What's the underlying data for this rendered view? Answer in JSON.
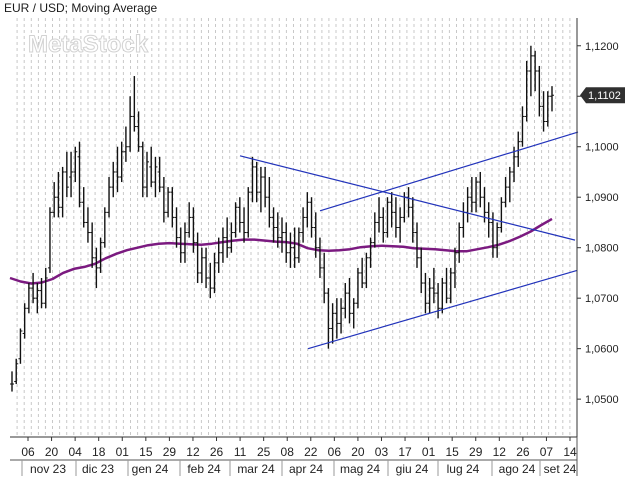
{
  "header": {
    "title": "EUR / USD; Moving Average",
    "watermark": "MetaStock"
  },
  "chart_data": {
    "type": "ohlc",
    "title": "EUR / USD; Moving Average",
    "ylim": [
      1.0425,
      1.1255
    ],
    "y_ticks": [
      "1,0500",
      "1,0600",
      "1,0700",
      "1,0800",
      "1,0900",
      "1,1000",
      "1,1100",
      "1,1200"
    ],
    "last_price_label": "1,1102",
    "x_day_ticks": [
      "06",
      "20",
      "04",
      "18",
      "01",
      "15",
      "29",
      "12",
      "26",
      "11",
      "25",
      "08",
      "22",
      "06",
      "20",
      "03",
      "17",
      "01",
      "15",
      "29",
      "12",
      "26",
      "07",
      "14"
    ],
    "x_month_labels": [
      "nov 23",
      "dic 23",
      "gen 24",
      "feb 24",
      "mar 24",
      "apr 24",
      "mag 24",
      "giu 24",
      "lug 24",
      "ago 24",
      "set 24"
    ],
    "grid": "vertical dashed",
    "series": [
      {
        "name": "EUR / USD",
        "kind": "ohlc",
        "values": [
          [
            1.053,
            1.0555,
            1.0515,
            1.053
          ],
          [
            1.0535,
            1.058,
            1.053,
            1.057
          ],
          [
            1.058,
            1.064,
            1.057,
            1.0635
          ],
          [
            1.063,
            1.069,
            1.062,
            1.068
          ],
          [
            1.068,
            1.073,
            1.067,
            1.072
          ],
          [
            1.072,
            1.075,
            1.069,
            1.07
          ],
          [
            1.07,
            1.073,
            1.067,
            1.0715
          ],
          [
            1.0715,
            1.074,
            1.068,
            1.069
          ],
          [
            1.069,
            1.076,
            1.068,
            1.074
          ],
          [
            1.076,
            1.088,
            1.075,
            1.087
          ],
          [
            1.087,
            1.093,
            1.086,
            1.09
          ],
          [
            1.09,
            1.095,
            1.086,
            1.088
          ],
          [
            1.088,
            1.096,
            1.086,
            1.095
          ],
          [
            1.095,
            1.099,
            1.09,
            1.092
          ],
          [
            1.094,
            1.099,
            1.09,
            1.095
          ],
          [
            1.095,
            1.1,
            1.093,
            1.099
          ],
          [
            1.098,
            1.101,
            1.088,
            1.089
          ],
          [
            1.089,
            1.092,
            1.084,
            1.085
          ],
          [
            1.085,
            1.088,
            1.081,
            1.083
          ],
          [
            1.083,
            1.085,
            1.076,
            1.078
          ],
          [
            1.078,
            1.08,
            1.072,
            1.076
          ],
          [
            1.076,
            1.082,
            1.075,
            1.081
          ],
          [
            1.081,
            1.088,
            1.08,
            1.087
          ],
          [
            1.087,
            1.094,
            1.086,
            1.092
          ],
          [
            1.092,
            1.097,
            1.09,
            1.095
          ],
          [
            1.095,
            1.1,
            1.091,
            1.094
          ],
          [
            1.094,
            1.101,
            1.093,
            1.099
          ],
          [
            1.099,
            1.104,
            1.097,
            1.1
          ],
          [
            1.1,
            1.11,
            1.099,
            1.106
          ],
          [
            1.106,
            1.114,
            1.103,
            1.104
          ],
          [
            1.104,
            1.107,
            1.099,
            1.1
          ],
          [
            1.1,
            1.101,
            1.09,
            1.092
          ],
          [
            1.092,
            1.099,
            1.09,
            1.097
          ],
          [
            1.096,
            1.1,
            1.092,
            1.093
          ],
          [
            1.093,
            1.098,
            1.09,
            1.096
          ],
          [
            1.095,
            1.098,
            1.091,
            1.092
          ],
          [
            1.092,
            1.094,
            1.085,
            1.087
          ],
          [
            1.087,
            1.092,
            1.086,
            1.091
          ],
          [
            1.091,
            1.092,
            1.084,
            1.086
          ],
          [
            1.086,
            1.088,
            1.08,
            1.082
          ],
          [
            1.082,
            1.084,
            1.077,
            1.079
          ],
          [
            1.079,
            1.085,
            1.077,
            1.083
          ],
          [
            1.083,
            1.089,
            1.082,
            1.086
          ],
          [
            1.086,
            1.088,
            1.079,
            1.081
          ],
          [
            1.081,
            1.083,
            1.073,
            1.075
          ],
          [
            1.075,
            1.08,
            1.073,
            1.078
          ],
          [
            1.078,
            1.08,
            1.072,
            1.074
          ],
          [
            1.074,
            1.077,
            1.07,
            1.072
          ],
          [
            1.072,
            1.079,
            1.071,
            1.077
          ],
          [
            1.077,
            1.082,
            1.075,
            1.079
          ],
          [
            1.079,
            1.084,
            1.077,
            1.082
          ],
          [
            1.082,
            1.086,
            1.078,
            1.08
          ],
          [
            1.08,
            1.085,
            1.079,
            1.083
          ],
          [
            1.083,
            1.089,
            1.082,
            1.088
          ],
          [
            1.088,
            1.09,
            1.083,
            1.085
          ],
          [
            1.085,
            1.088,
            1.081,
            1.083
          ],
          [
            1.083,
            1.092,
            1.082,
            1.091
          ],
          [
            1.091,
            1.098,
            1.089,
            1.096
          ],
          [
            1.096,
            1.097,
            1.089,
            1.091
          ],
          [
            1.091,
            1.096,
            1.087,
            1.094
          ],
          [
            1.094,
            1.096,
            1.088,
            1.09
          ],
          [
            1.09,
            1.094,
            1.084,
            1.086
          ],
          [
            1.086,
            1.088,
            1.081,
            1.084
          ],
          [
            1.084,
            1.087,
            1.08,
            1.082
          ],
          [
            1.082,
            1.086,
            1.079,
            1.083
          ],
          [
            1.083,
            1.085,
            1.077,
            1.079
          ],
          [
            1.079,
            1.083,
            1.076,
            1.08
          ],
          [
            1.08,
            1.084,
            1.076,
            1.078
          ],
          [
            1.078,
            1.084,
            1.077,
            1.083
          ],
          [
            1.083,
            1.088,
            1.081,
            1.086
          ],
          [
            1.086,
            1.091,
            1.084,
            1.089
          ],
          [
            1.089,
            1.09,
            1.082,
            1.084
          ],
          [
            1.084,
            1.087,
            1.078,
            1.08
          ],
          [
            1.08,
            1.082,
            1.074,
            1.076
          ],
          [
            1.076,
            1.079,
            1.069,
            1.071
          ],
          [
            1.071,
            1.072,
            1.06,
            1.064
          ],
          [
            1.064,
            1.069,
            1.061,
            1.067
          ],
          [
            1.067,
            1.07,
            1.062,
            1.065
          ],
          [
            1.065,
            1.07,
            1.063,
            1.068
          ],
          [
            1.068,
            1.073,
            1.066,
            1.071
          ],
          [
            1.071,
            1.074,
            1.065,
            1.067
          ],
          [
            1.067,
            1.07,
            1.064,
            1.069
          ],
          [
            1.069,
            1.076,
            1.068,
            1.075
          ],
          [
            1.075,
            1.078,
            1.072,
            1.073
          ],
          [
            1.073,
            1.079,
            1.072,
            1.078
          ],
          [
            1.078,
            1.082,
            1.076,
            1.081
          ],
          [
            1.081,
            1.087,
            1.08,
            1.085
          ],
          [
            1.085,
            1.09,
            1.083,
            1.086
          ],
          [
            1.086,
            1.088,
            1.081,
            1.083
          ],
          [
            1.083,
            1.09,
            1.082,
            1.089
          ],
          [
            1.089,
            1.091,
            1.084,
            1.087
          ],
          [
            1.087,
            1.09,
            1.082,
            1.084
          ],
          [
            1.084,
            1.088,
            1.081,
            1.086
          ],
          [
            1.086,
            1.091,
            1.085,
            1.09
          ],
          [
            1.09,
            1.092,
            1.086,
            1.088
          ],
          [
            1.088,
            1.09,
            1.081,
            1.083
          ],
          [
            1.083,
            1.085,
            1.076,
            1.078
          ],
          [
            1.078,
            1.08,
            1.071,
            1.073
          ],
          [
            1.073,
            1.075,
            1.067,
            1.069
          ],
          [
            1.069,
            1.074,
            1.067,
            1.072
          ],
          [
            1.072,
            1.076,
            1.069,
            1.071
          ],
          [
            1.071,
            1.073,
            1.066,
            1.068
          ],
          [
            1.068,
            1.074,
            1.067,
            1.073
          ],
          [
            1.073,
            1.076,
            1.069,
            1.07
          ],
          [
            1.07,
            1.076,
            1.069,
            1.075
          ],
          [
            1.075,
            1.08,
            1.072,
            1.079
          ],
          [
            1.079,
            1.085,
            1.077,
            1.084
          ],
          [
            1.084,
            1.089,
            1.082,
            1.087
          ],
          [
            1.087,
            1.092,
            1.085,
            1.09
          ],
          [
            1.09,
            1.094,
            1.087,
            1.089
          ],
          [
            1.089,
            1.094,
            1.087,
            1.093
          ],
          [
            1.093,
            1.095,
            1.088,
            1.09
          ],
          [
            1.09,
            1.092,
            1.085,
            1.087
          ],
          [
            1.087,
            1.089,
            1.082,
            1.085
          ],
          [
            1.085,
            1.087,
            1.078,
            1.08
          ],
          [
            1.08,
            1.085,
            1.078,
            1.084
          ],
          [
            1.084,
            1.09,
            1.083,
            1.089
          ],
          [
            1.089,
            1.094,
            1.088,
            1.092
          ],
          [
            1.092,
            1.096,
            1.089,
            1.095
          ],
          [
            1.095,
            1.1,
            1.093,
            1.098
          ],
          [
            1.098,
            1.103,
            1.096,
            1.101
          ],
          [
            1.101,
            1.108,
            1.1,
            1.106
          ],
          [
            1.106,
            1.117,
            1.105,
            1.115
          ],
          [
            1.115,
            1.12,
            1.11,
            1.118
          ],
          [
            1.118,
            1.119,
            1.111,
            1.115
          ],
          [
            1.115,
            1.116,
            1.106,
            1.108
          ],
          [
            1.108,
            1.111,
            1.103,
            1.105
          ],
          [
            1.105,
            1.111,
            1.104,
            1.11
          ],
          [
            1.11,
            1.112,
            1.107,
            1.1102
          ]
        ]
      },
      {
        "name": "Moving Average",
        "kind": "line",
        "color": "#7b1a80",
        "values": [
          1.074,
          1.0733,
          1.0729,
          1.0731,
          1.0738,
          1.075,
          1.0758,
          1.0762,
          1.0768,
          1.0779,
          1.0788,
          1.0795,
          1.08,
          1.0805,
          1.0808,
          1.0809,
          1.0808,
          1.0807,
          1.0806,
          1.0808,
          1.0811,
          1.0814,
          1.0816,
          1.0816,
          1.0814,
          1.0812,
          1.0811,
          1.0808,
          1.0799,
          1.0795,
          1.0794,
          1.0795,
          1.0797,
          1.0801,
          1.0803,
          1.0804,
          1.0803,
          1.0802,
          1.0799,
          1.0798,
          1.0797,
          1.0795,
          1.0793,
          1.0793,
          1.0797,
          1.0801,
          1.0806,
          1.0813,
          1.0822,
          1.0832,
          1.0845,
          1.0857
        ]
      }
    ],
    "annotations": {
      "trendline_color": "#2233bb",
      "trendlines": [
        {
          "points": [
            [
              0,
              1.0982
            ],
            [
              1,
              1.0815
            ]
          ]
        },
        {
          "points": [
            [
              0,
              1.06
            ],
            [
              1,
              1.0755
            ]
          ]
        },
        {
          "points": [
            [
              0,
              1.0873
            ],
            [
              1,
              1.1029
            ]
          ]
        }
      ]
    }
  }
}
